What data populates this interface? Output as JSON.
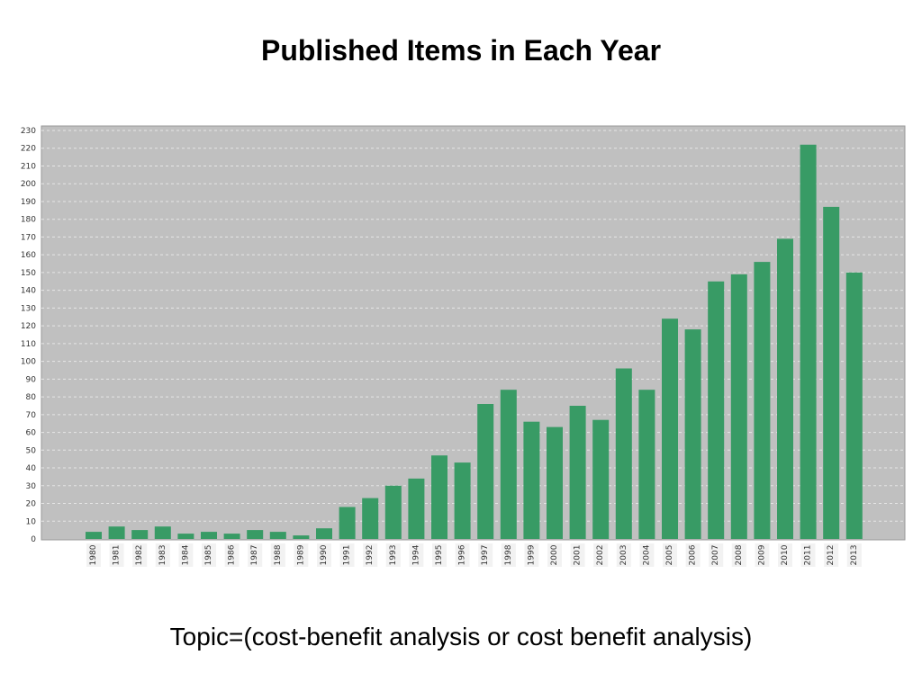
{
  "page": {
    "title": "Published Items in Each Year",
    "caption": "Topic=(cost-benefit analysis or cost benefit analysis)"
  },
  "chart_data": {
    "type": "bar",
    "title": "Published Items in Each Year",
    "xlabel": "",
    "ylabel": "",
    "categories": [
      "1980",
      "1981",
      "1982",
      "1983",
      "1984",
      "1985",
      "1986",
      "1987",
      "1988",
      "1989",
      "1990",
      "1991",
      "1992",
      "1993",
      "1994",
      "1995",
      "1996",
      "1997",
      "1998",
      "1999",
      "2000",
      "2001",
      "2002",
      "2003",
      "2004",
      "2005",
      "2006",
      "2007",
      "2008",
      "2009",
      "2010",
      "2011",
      "2012",
      "2013"
    ],
    "values": [
      4,
      7,
      5,
      7,
      3,
      4,
      3,
      5,
      4,
      2,
      6,
      18,
      23,
      30,
      34,
      47,
      43,
      76,
      84,
      66,
      63,
      75,
      67,
      96,
      84,
      124,
      118,
      145,
      149,
      156,
      169,
      222,
      187,
      150
    ],
    "ylim": [
      0,
      230
    ],
    "yticks": [
      0,
      10,
      20,
      30,
      40,
      50,
      60,
      70,
      80,
      90,
      100,
      110,
      120,
      130,
      140,
      150,
      160,
      170,
      180,
      190,
      200,
      210,
      220,
      230
    ],
    "grid": true,
    "colors": {
      "bar": "#389b65",
      "plot_background": "#c0c0c0",
      "grid": "#e6e6e6"
    }
  }
}
